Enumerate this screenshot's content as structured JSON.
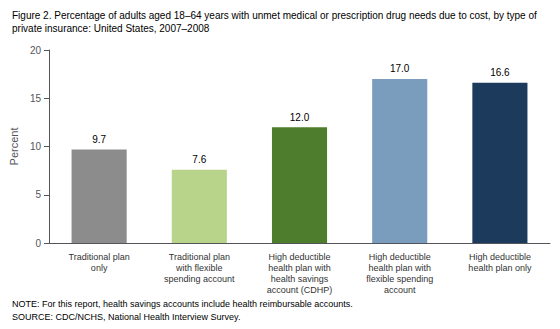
{
  "chart_data": {
    "type": "bar",
    "title": "Figure 2. Percentage of adults aged 18–64 years with unmet medical or prescription drug needs due to cost, by type of\nprivate insurance: United States, 2007–2008",
    "categories": [
      "Traditional plan\nonly",
      "Traditional plan\nwith flexible\nspending account",
      "High deductible\nhealth plan with\nhealth savings\naccount (CDHP)",
      "High deductible\nhealth plan with\nflexible spending\naccount",
      "High deductible\nhealth plan only"
    ],
    "values": [
      9.7,
      7.6,
      12.0,
      17.0,
      16.6
    ],
    "value_labels": [
      "9.7",
      "7.6",
      "12.0",
      "17.0",
      "16.6"
    ],
    "colors": [
      "#8c8c8c",
      "#b8d48a",
      "#4e7d2d",
      "#7a9cbd",
      "#1b3a5c"
    ],
    "ylabel": "Percent",
    "ylim": [
      0,
      20
    ],
    "yticks": [
      0,
      5,
      10,
      15,
      20
    ],
    "annotations": [
      "NOTE: For this report, health savings accounts include health reimbursable accounts.",
      "SOURCE: CDC/NCHS, National Health Interview Survey."
    ],
    "data_labels": true,
    "grid": false
  }
}
